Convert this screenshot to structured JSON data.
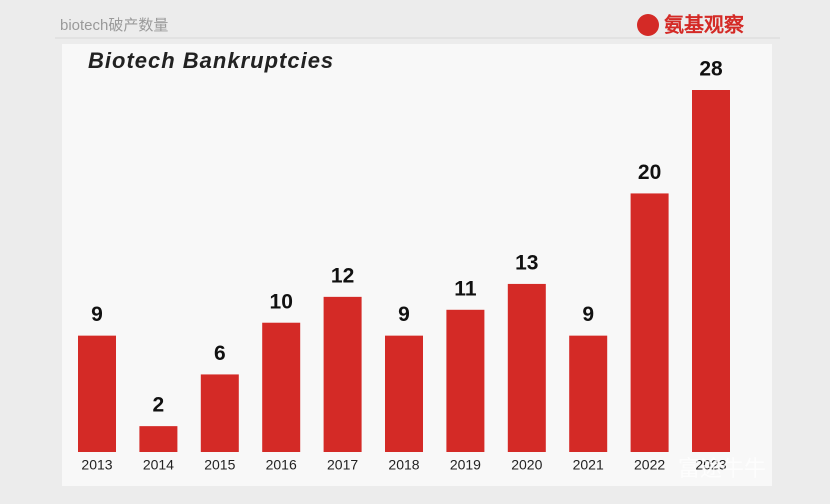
{
  "header": "biotech破产数量",
  "logo": "氨基观察",
  "watermark": "富途牛牛",
  "chart_data": {
    "type": "bar",
    "title": "Biotech Bankruptcies",
    "categories": [
      "2013",
      "2014",
      "2015",
      "2016",
      "2017",
      "2018",
      "2019",
      "2020",
      "2021",
      "2022",
      "2023"
    ],
    "values": [
      9,
      2,
      6,
      10,
      12,
      9,
      11,
      13,
      9,
      20,
      28
    ],
    "color": "#d42a26"
  }
}
